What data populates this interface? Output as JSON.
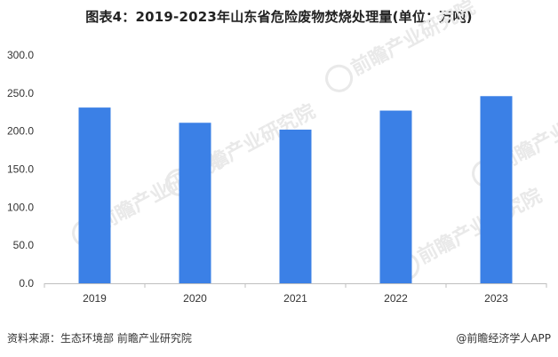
{
  "title": "图表4：2019-2023年山东省危险废物焚烧处理量(单位：万吨)",
  "watermark": "前瞻产业研究院",
  "source": "资料来源：生态环境部 前瞻产业研究院",
  "brand": "@前瞻经济学人APP",
  "colors": {
    "bar": "#3b80e6",
    "axis": "#bfbfbf",
    "text": "#333333",
    "watermark": "#e9e9e9"
  },
  "chart_data": {
    "type": "bar",
    "categories": [
      "2019",
      "2020",
      "2021",
      "2022",
      "2023"
    ],
    "values": [
      231,
      211,
      202,
      227,
      246
    ],
    "ylim": [
      0,
      300
    ],
    "yticks": [
      "0.0",
      "50.0",
      "100.0",
      "150.0",
      "200.0",
      "250.0",
      "300.0"
    ],
    "grid": false,
    "legend": "none"
  }
}
